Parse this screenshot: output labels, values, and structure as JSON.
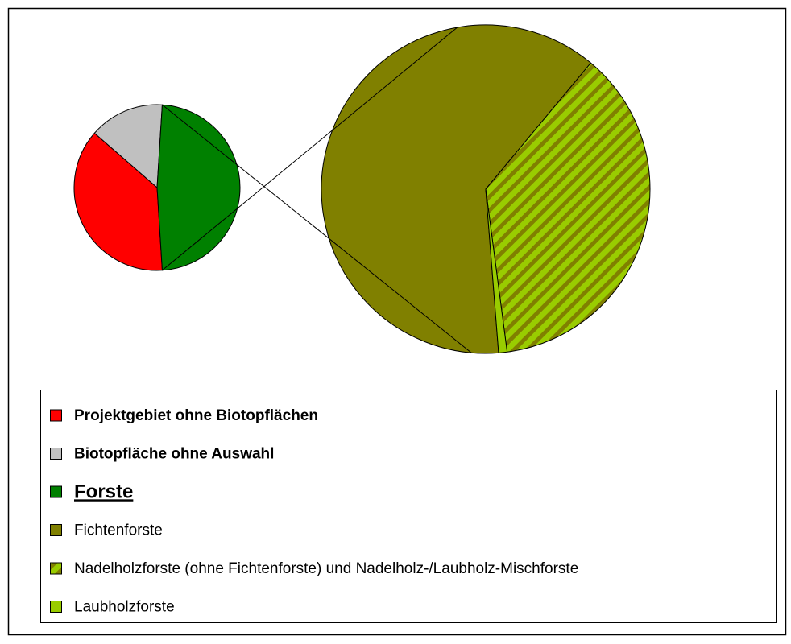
{
  "chart_data": {
    "type": "pie-of-pie",
    "primary": [
      {
        "name": "Projektgebiet ohne Biotopflächen",
        "color": "#ff0000",
        "value": 37.4
      },
      {
        "name": "Biotopfläche ohne Auswahl",
        "color": "#c0c0c0",
        "value": 14.6
      },
      {
        "name": "Forste",
        "color": "#008000",
        "value": 48
      }
    ],
    "secondary": [
      {
        "name": "Fichtenforste",
        "color": "#808000",
        "value": 29.9
      },
      {
        "name": "Nadelholzforste (ohne Fichtenforste) und Nadelholz-/Laubholz-Mischforste",
        "color": "#99cc00",
        "stripe_color": "#808000",
        "value": 17.7
      },
      {
        "name": "Laubholzforste",
        "color": "#99cc00",
        "value": 0.4
      }
    ]
  }
}
